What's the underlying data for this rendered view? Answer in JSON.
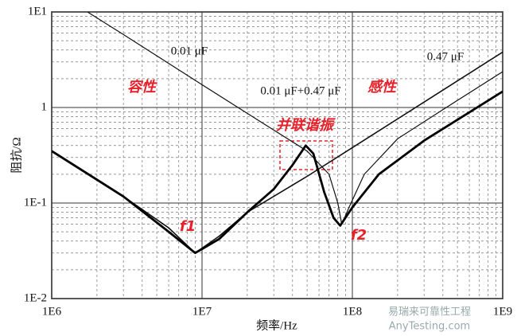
{
  "chart_data": {
    "type": "line",
    "x_label": "频率/Hz",
    "y_label": "阻抗/Ω",
    "xscale": "log",
    "yscale": "log",
    "grid": true,
    "xlim": [
      1000000,
      1000000000
    ],
    "ylim": [
      0.01,
      10
    ],
    "xticks": [
      {
        "value": 1000000,
        "label": "1E6"
      },
      {
        "value": 10000000,
        "label": "1E7"
      },
      {
        "value": 100000000,
        "label": "1E8"
      },
      {
        "value": 1000000000,
        "label": "1E9"
      }
    ],
    "yticks": [
      {
        "value": 0.01,
        "label": "1E-2"
      },
      {
        "value": 0.1,
        "label": "1E-1"
      },
      1,
      {
        "value": 10,
        "label": "1E1"
      }
    ],
    "series": [
      {
        "name": "0.01 μF",
        "color": "#111111",
        "x": [
          1730000,
          3000000,
          10000000,
          30000000,
          50000000,
          70000000,
          80000000,
          85000000,
          95000000,
          120000000,
          200000000,
          400000000,
          1000000000
        ],
        "values": [
          10,
          5.8,
          1.73,
          0.58,
          0.35,
          0.2,
          0.1,
          0.06,
          0.09,
          0.2,
          0.47,
          0.95,
          2.37
        ]
      },
      {
        "name": "0.47 μF",
        "color": "#111111",
        "x": [
          1000000,
          3000000,
          6000000,
          9000000,
          13000000,
          20000000,
          50000000,
          100000000,
          300000000,
          1000000000
        ],
        "values": [
          0.35,
          0.117,
          0.055,
          0.03,
          0.045,
          0.08,
          0.19,
          0.38,
          1.14,
          3.8
        ]
      },
      {
        "name": "0.01 μF+0.47 μF",
        "color": "#000000",
        "x": [
          1000000,
          3000000,
          6000000,
          9000000,
          13000000,
          20000000,
          30000000,
          40000000,
          49000000,
          55000000,
          65000000,
          75000000,
          83000000,
          100000000,
          150000000,
          300000000,
          1000000000
        ],
        "values": [
          0.35,
          0.117,
          0.05,
          0.03,
          0.042,
          0.08,
          0.14,
          0.25,
          0.4,
          0.33,
          0.13,
          0.07,
          0.058,
          0.09,
          0.2,
          0.45,
          1.47
        ]
      }
    ],
    "annotations": [
      "容性",
      "感性",
      "并联谐振",
      "f1",
      "f2"
    ],
    "watermark": [
      "易瑞来可靠性工程",
      "AnyTesting.com"
    ]
  }
}
